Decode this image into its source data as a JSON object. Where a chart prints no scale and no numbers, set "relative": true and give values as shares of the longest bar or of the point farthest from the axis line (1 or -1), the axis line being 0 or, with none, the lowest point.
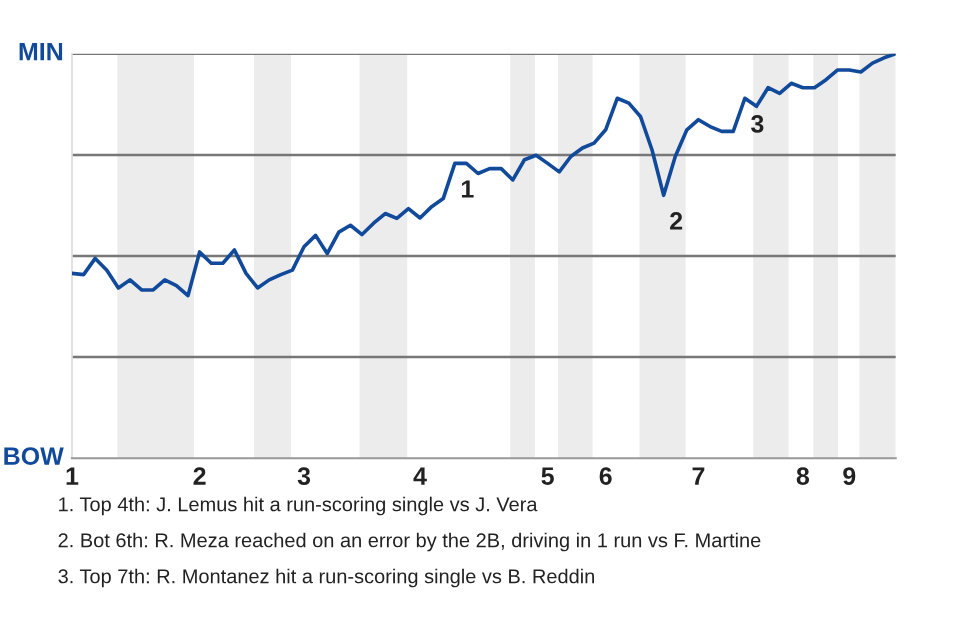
{
  "chart_data": {
    "type": "line",
    "relative": true,
    "categories": [
      "1",
      null,
      null,
      null,
      null,
      null,
      null,
      null,
      null,
      null,
      null,
      "2",
      null,
      null,
      null,
      null,
      null,
      null,
      null,
      null,
      "3",
      null,
      null,
      null,
      null,
      null,
      null,
      null,
      null,
      null,
      "4",
      null,
      null,
      null,
      null,
      null,
      null,
      null,
      null,
      null,
      null,
      "5",
      null,
      null,
      null,
      null,
      "6",
      null,
      null,
      null,
      null,
      null,
      null,
      null,
      "7",
      null,
      null,
      null,
      null,
      null,
      null,
      null,
      null,
      "8",
      null,
      null,
      null,
      "9",
      null,
      null,
      null,
      null
    ],
    "series": [
      {
        "color": "#114a9a",
        "values": [
          0.457,
          0.454,
          0.494,
          0.465,
          0.421,
          0.441,
          0.416,
          0.416,
          0.441,
          0.427,
          0.402,
          0.51,
          0.482,
          0.482,
          0.515,
          0.457,
          0.421,
          0.441,
          0.454,
          0.465,
          0.523,
          0.551,
          0.506,
          0.559,
          0.576,
          0.553,
          0.581,
          0.605,
          0.593,
          0.617,
          0.594,
          0.622,
          0.642,
          0.729,
          0.729,
          0.704,
          0.716,
          0.716,
          0.688,
          0.738,
          0.749,
          0.729,
          0.708,
          0.746,
          0.767,
          0.779,
          0.812,
          0.89,
          0.878,
          0.845,
          0.762,
          0.65,
          0.746,
          0.812,
          0.837,
          0.82,
          0.808,
          0.808,
          0.89,
          0.87,
          0.916,
          0.902,
          0.927,
          0.916,
          0.916,
          0.936,
          0.96,
          0.96,
          0.955,
          0.977,
          0.99,
          1
        ]
      }
    ],
    "ref_lines": [
      {
        "axis": "y",
        "value": 0.25,
        "color": "#777777"
      },
      {
        "axis": "y",
        "value": 0.5,
        "color": "#777777"
      },
      {
        "axis": "y",
        "value": 0.75,
        "color": "#777777"
      },
      {
        "axis": "y",
        "value": 1,
        "color": "#777777"
      }
    ],
    "annotations": [
      "MIN",
      "BOW",
      "1",
      "2",
      "3",
      "1. Top 4th: J. Lemus hit a run-scoring single vs J. Vera",
      "2. Bot 6th: R. Meza reached on an error by the 2B, driving in 1 run vs F. Martine",
      "3. Top 7th: R. Montanez hit a run-scoring single vs B. Reddin"
    ]
  }
}
